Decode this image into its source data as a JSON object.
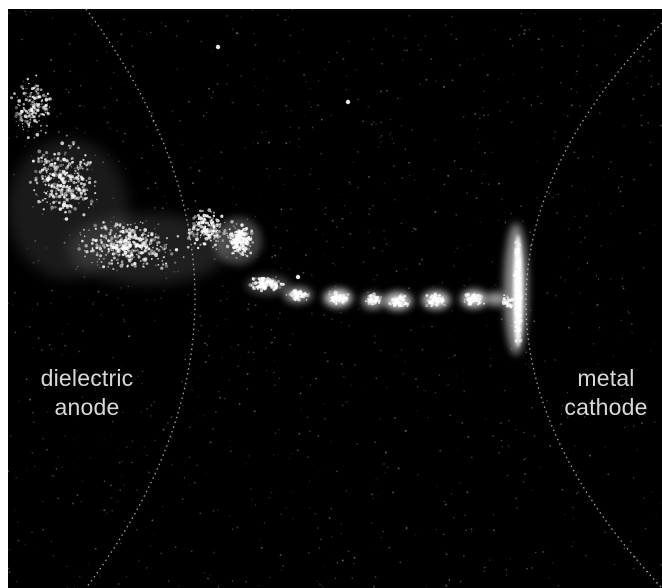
{
  "image": {
    "background_color": "#000000",
    "glow_color": "#ffffff",
    "boundary_color": "#bdbdbd"
  },
  "labels": {
    "anode_line1": "dielectric",
    "anode_line2": "anode",
    "cathode_line1": "metal",
    "cathode_line2": "cathode"
  }
}
